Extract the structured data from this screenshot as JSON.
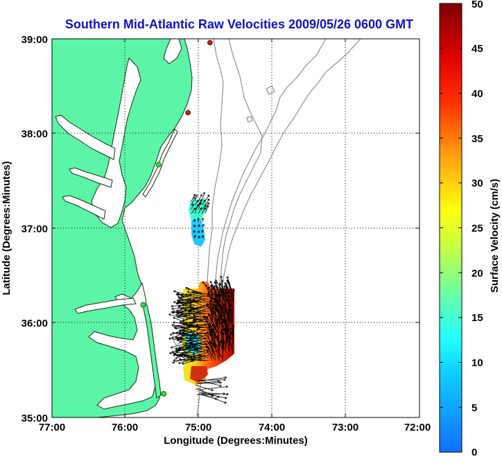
{
  "title": "Southern Mid-Atlantic Raw Velocities 2009/05/26 0600 GMT",
  "colors": {
    "title": "#1010d0",
    "land": "#5cf5a8",
    "coast": "#103010",
    "bathymetry": "#909090",
    "grid": "#000000",
    "station_red": "#e01010",
    "station_green": "#30e030"
  },
  "map": {
    "xlabel": "Longitude (Degrees:Minutes)",
    "ylabel": "Latitude (Degrees:Minutes)",
    "x_ticks": [
      "77:00",
      "76:00",
      "75:00",
      "74:00",
      "73:00",
      "72:00"
    ],
    "y_ticks": [
      "39:00",
      "38:00",
      "37:00",
      "36:00",
      "35:00"
    ],
    "lon_range": [
      -77,
      -72
    ],
    "lat_range": [
      35,
      39
    ],
    "grid": "dotted",
    "stations": [
      {
        "lon": -74.85,
        "lat": 38.96,
        "color": "red"
      },
      {
        "lon": -75.15,
        "lat": 38.22,
        "color": "red"
      },
      {
        "lon": -75.55,
        "lat": 37.67,
        "color": "green"
      },
      {
        "lon": -75.76,
        "lat": 36.19,
        "color": "green"
      },
      {
        "lon": -75.48,
        "lat": 35.25,
        "color": "green"
      }
    ]
  },
  "colorbar": {
    "label": "Surface Velocity (cm/s)",
    "ticks": [
      "0",
      "5",
      "10",
      "15",
      "20",
      "25",
      "30",
      "35",
      "40",
      "45",
      "50"
    ],
    "min": 0,
    "max": 50
  }
}
